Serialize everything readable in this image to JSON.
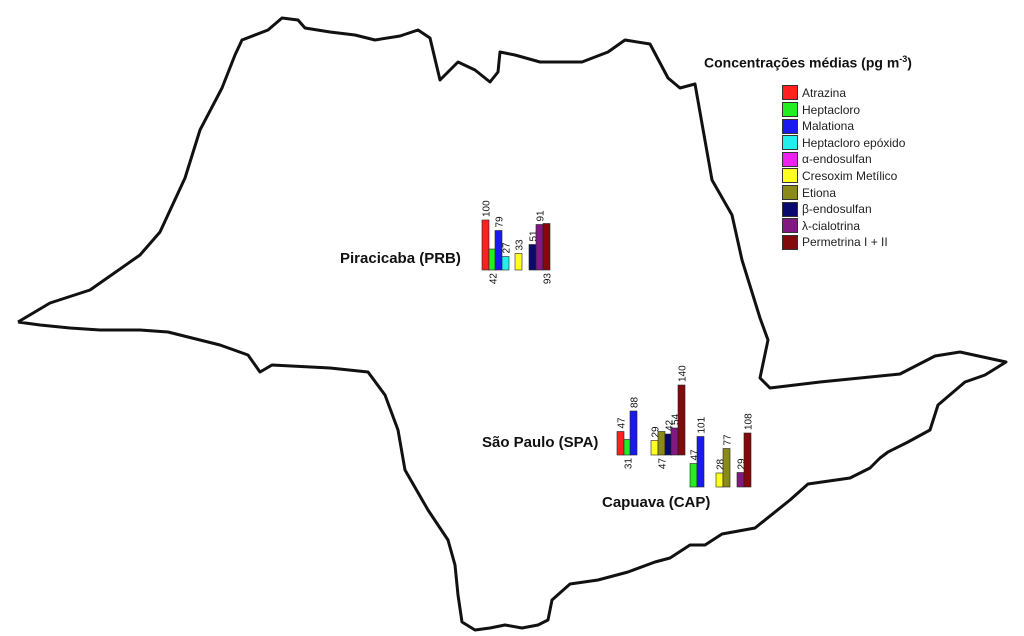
{
  "legend": {
    "title_main": "Concentrações médias (pg m",
    "title_sup": "-3",
    "title_end": ")",
    "items": [
      {
        "label": "Atrazina",
        "color": "#ff2020"
      },
      {
        "label": "Heptacloro",
        "color": "#22ee22"
      },
      {
        "label": "Malationa",
        "color": "#1a1aee"
      },
      {
        "label": "Heptacloro epóxido",
        "color": "#22eeee"
      },
      {
        "label": "α-endosulfan",
        "color": "#ee22ee"
      },
      {
        "label": "Cresoxim Metílico",
        "color": "#ffff22"
      },
      {
        "label": "Etiona",
        "color": "#8a8a1a"
      },
      {
        "label": "β-endosulfan",
        "color": "#0a0a6e"
      },
      {
        "label": "λ-cialotrina",
        "color": "#801a80"
      },
      {
        "label": "Permetrina I + II",
        "color": "#820a0a"
      }
    ]
  },
  "sites": [
    {
      "name": "Piracicaba (PRB)",
      "bars": [
        {
          "series": "Atrazina",
          "value": 100
        },
        {
          "series": "Heptacloro",
          "value": 42
        },
        {
          "series": "Malationa",
          "value": 79
        },
        {
          "series": "Heptacloro epóxido",
          "value": 27
        },
        {
          "series": "Cresoxim Metílico",
          "value": 33
        },
        {
          "series": "β-endosulfan",
          "value": 51
        },
        {
          "series": "λ-cialotrina",
          "value": 91
        },
        {
          "series": "Permetrina I + II",
          "value": 93
        }
      ]
    },
    {
      "name": "São Paulo (SPA)",
      "bars": [
        {
          "series": "Atrazina",
          "value": 47
        },
        {
          "series": "Heptacloro",
          "value": 31
        },
        {
          "series": "Malationa",
          "value": 88
        },
        {
          "series": "Cresoxim Metílico",
          "value": 29
        },
        {
          "series": "Etiona",
          "value": 47
        },
        {
          "series": "β-endosulfan",
          "value": 42
        },
        {
          "series": "λ-cialotrina",
          "value": 54
        },
        {
          "series": "Permetrina I + II",
          "value": 140
        }
      ]
    },
    {
      "name": "Capuava (CAP)",
      "bars": [
        {
          "series": "Heptacloro",
          "value": 47
        },
        {
          "series": "Malationa",
          "value": 101
        },
        {
          "series": "Cresoxim Metílico",
          "value": 28
        },
        {
          "series": "Etiona",
          "value": 77
        },
        {
          "series": "λ-cialotrina",
          "value": 29
        },
        {
          "series": "Permetrina I + II",
          "value": 108
        }
      ]
    }
  ]
}
